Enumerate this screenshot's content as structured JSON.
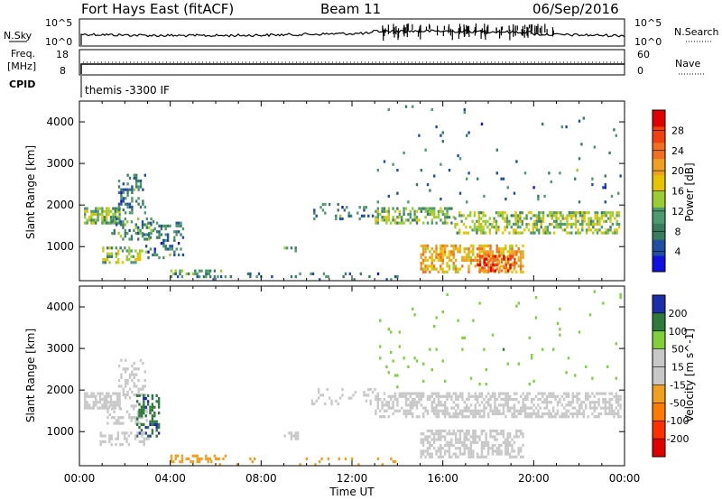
{
  "header": {
    "station": "Fort Hays East (fitACF)",
    "beam": "Beam 11",
    "date": "06/Sep/2016"
  },
  "noise_panel": {
    "left_label": "N.Sky",
    "left_ticks": [
      "10^5",
      "10^0"
    ],
    "right_ticks": [
      "10^5",
      "10^0"
    ],
    "right_label": "N.Search"
  },
  "freq_panel": {
    "left_label_1": "Freq.",
    "left_label_2": "[MHz]",
    "left_ticks": [
      "18",
      "8"
    ],
    "right_ticks": [
      "60",
      "0"
    ],
    "right_label": "Nave"
  },
  "cpid": {
    "label": "CPID",
    "value": "themis -3300 IF"
  },
  "colors": {
    "power_scale": [
      "#1010e0",
      "#1f4fa0",
      "#3a7d5e",
      "#4e9a6e",
      "#9acd32",
      "#e6c400",
      "#f0a020",
      "#f07020",
      "#f04010",
      "#e00000"
    ],
    "velocity_scale": [
      "#1c2fa8",
      "#2e7a3a",
      "#7ed13a",
      "#c8c8c8",
      "#c8c8c8",
      "#f0a020",
      "#ff7a00",
      "#ff3000",
      "#e00000"
    ]
  },
  "chart_data": [
    {
      "type": "heatmap",
      "name_hint": "power",
      "ylabel": "Slant Range [km]",
      "yticks": [
        "4000",
        "3000",
        "2000",
        "1000"
      ],
      "ylim": [
        180,
        4500
      ],
      "xlim": [
        0,
        24
      ],
      "colorbar_label": "Power [dB]",
      "colorbar_ticks": [
        "28",
        "24",
        "20",
        "16",
        "12",
        "8",
        "4"
      ],
      "colorbar_range": [
        0,
        32
      ],
      "clusters": [
        {
          "t0": 0.2,
          "t1": 1.8,
          "r0": 1550,
          "r1": 1950,
          "density": 0.75,
          "level": 12
        },
        {
          "t0": 1.7,
          "t1": 2.9,
          "r0": 1800,
          "r1": 2750,
          "density": 0.35,
          "level": 8
        },
        {
          "t0": 1.4,
          "t1": 3.3,
          "r0": 1200,
          "r1": 1700,
          "density": 0.35,
          "level": 10
        },
        {
          "t0": 1.0,
          "t1": 2.8,
          "r0": 650,
          "r1": 1000,
          "density": 0.4,
          "level": 14
        },
        {
          "t0": 2.8,
          "t1": 4.6,
          "r0": 750,
          "r1": 1600,
          "density": 0.3,
          "level": 8
        },
        {
          "t0": 4.0,
          "t1": 6.5,
          "r0": 280,
          "r1": 450,
          "density": 0.35,
          "level": 10
        },
        {
          "t0": 9.0,
          "t1": 9.6,
          "r0": 850,
          "r1": 1000,
          "density": 0.5,
          "level": 12
        },
        {
          "t0": 5.0,
          "t1": 14.0,
          "r0": 200,
          "r1": 380,
          "density": 0.1,
          "level": 8
        },
        {
          "t0": 10.2,
          "t1": 13.0,
          "r0": 1700,
          "r1": 2050,
          "density": 0.15,
          "level": 8
        },
        {
          "t0": 13.0,
          "t1": 16.5,
          "r0": 1550,
          "r1": 1950,
          "density": 0.55,
          "level": 12
        },
        {
          "t0": 16.5,
          "t1": 20.0,
          "r0": 1300,
          "r1": 1850,
          "density": 0.5,
          "level": 14
        },
        {
          "t0": 20.0,
          "t1": 23.8,
          "r0": 1350,
          "r1": 1850,
          "density": 0.6,
          "level": 14
        },
        {
          "t0": 15.0,
          "t1": 19.5,
          "r0": 420,
          "r1": 1050,
          "density": 0.55,
          "level": 20
        },
        {
          "t0": 17.5,
          "t1": 19.2,
          "r0": 450,
          "r1": 800,
          "density": 0.6,
          "level": 26
        },
        {
          "t0": 13.0,
          "t1": 23.8,
          "r0": 2100,
          "r1": 4400,
          "density": 0.02,
          "level": 8
        }
      ]
    },
    {
      "type": "heatmap",
      "name_hint": "velocity",
      "ylabel": "Slant Range [km]",
      "yticks": [
        "4000",
        "3000",
        "2000",
        "1000"
      ],
      "ylim": [
        180,
        4500
      ],
      "xlim": [
        0,
        24
      ],
      "xticks": [
        "00:00",
        "04:00",
        "08:00",
        "12:00",
        "16:00",
        "20:00",
        "00:00"
      ],
      "xlabel": "Time UT",
      "colorbar_label": "Velocity [m s^-1]",
      "colorbar_ticks": [
        "200",
        "100",
        "50",
        "15",
        "-15",
        "-50",
        "-100",
        "-200"
      ],
      "colorbar_range": [
        -250,
        250
      ],
      "clusters": [
        {
          "t0": 0.2,
          "t1": 1.8,
          "r0": 1550,
          "r1": 1950,
          "density": 0.75,
          "level": 0
        },
        {
          "t0": 1.7,
          "t1": 2.9,
          "r0": 1800,
          "r1": 2750,
          "density": 0.3,
          "level": 0
        },
        {
          "t0": 1.2,
          "t1": 3.0,
          "r0": 1200,
          "r1": 1650,
          "density": 0.4,
          "level": 60
        },
        {
          "t0": 2.5,
          "t1": 3.5,
          "r0": 900,
          "r1": 1900,
          "density": 0.45,
          "level": 180
        },
        {
          "t0": 0.8,
          "t1": 3.0,
          "r0": 700,
          "r1": 1000,
          "density": 0.45,
          "level": 40
        },
        {
          "t0": 4.0,
          "t1": 6.5,
          "r0": 280,
          "r1": 450,
          "density": 0.35,
          "level": -60
        },
        {
          "t0": 9.0,
          "t1": 9.6,
          "r0": 850,
          "r1": 1000,
          "density": 0.5,
          "level": 0
        },
        {
          "t0": 5.0,
          "t1": 14.0,
          "r0": 200,
          "r1": 380,
          "density": 0.12,
          "level": -60
        },
        {
          "t0": 10.2,
          "t1": 13.0,
          "r0": 1700,
          "r1": 2050,
          "density": 0.15,
          "level": 0
        },
        {
          "t0": 13.0,
          "t1": 23.8,
          "r0": 1350,
          "r1": 1950,
          "density": 0.55,
          "level": 0
        },
        {
          "t0": 15.0,
          "t1": 19.5,
          "r0": 420,
          "r1": 1050,
          "density": 0.55,
          "level": 0
        },
        {
          "t0": 13.0,
          "t1": 23.8,
          "r0": 2100,
          "r1": 4400,
          "density": 0.02,
          "level": 120
        }
      ]
    }
  ]
}
